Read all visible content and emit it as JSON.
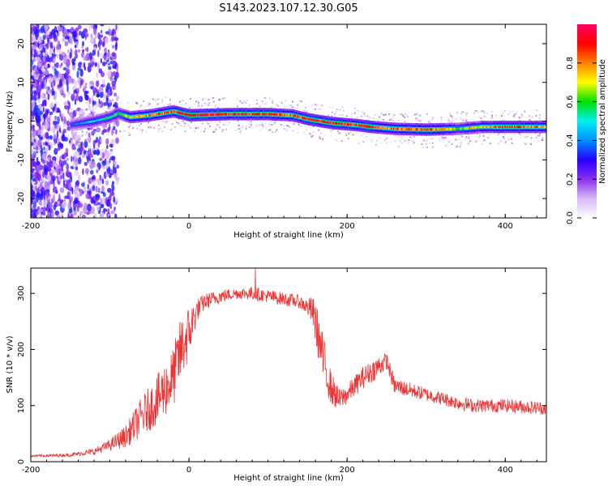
{
  "title": "S143.2023.107.12.30.G05",
  "chart_data": [
    {
      "type": "heatmap",
      "xlabel": "Height of straight line (km)",
      "ylabel": "Frequency (Hz)",
      "xlim": [
        -200,
        452
      ],
      "ylim": [
        -25,
        25
      ],
      "xticks": [
        -200,
        0,
        200,
        400
      ],
      "yticks": [
        -20,
        -10,
        0,
        10,
        20
      ],
      "grid": false,
      "colorbar": {
        "label": "Normalized spectral amplitude",
        "range": [
          0,
          1
        ],
        "ticks": [
          "0.0",
          "0.2",
          "0.4",
          "0.6",
          "0.8"
        ],
        "tick_values": [
          0,
          0.2,
          0.4,
          0.6,
          0.8
        ],
        "colormap": [
          "#ffffff",
          "#d7b8f5",
          "#8c2ff0",
          "#2400ff",
          "#0090ff",
          "#00f0f0",
          "#00e000",
          "#ffff00",
          "#ff8000",
          "#ff0000",
          "#ff0060"
        ]
      },
      "ridge": {
        "x": [
          -150,
          -120,
          -100,
          -90,
          -75,
          -50,
          -20,
          0,
          50,
          100,
          130,
          150,
          180,
          210,
          230,
          260,
          300,
          340,
          370,
          400,
          452
        ],
        "y": [
          -1,
          0,
          1,
          2,
          1,
          1.5,
          2.5,
          1.5,
          1.8,
          1.8,
          1.5,
          0.5,
          -0.5,
          -1,
          -1.5,
          -2,
          -2.2,
          -2,
          -1.5,
          -1.5,
          -1.5
        ],
        "strength": [
          0.35,
          0.5,
          0.6,
          0.6,
          0.7,
          0.8,
          0.9,
          0.95,
          0.9,
          0.9,
          0.85,
          0.95,
          0.9,
          0.9,
          0.9,
          0.8,
          0.9,
          0.65,
          0.75,
          0.9,
          0.8
        ]
      }
    },
    {
      "type": "line",
      "xlabel": "Height of straight line (km)",
      "ylabel": "SNR (10 * v/v)",
      "xlim": [
        -200,
        452
      ],
      "ylim": [
        0,
        345
      ],
      "xticks": [
        -200,
        0,
        200,
        400
      ],
      "yticks": [
        0,
        100,
        200,
        300
      ],
      "grid": false,
      "color": "#f03232",
      "x": [
        -200,
        -150,
        -120,
        -100,
        -80,
        -60,
        -40,
        -20,
        -10,
        0,
        10,
        20,
        40,
        60,
        80,
        100,
        120,
        140,
        150,
        155,
        160,
        170,
        180,
        190,
        200,
        220,
        240,
        250,
        260,
        300,
        340,
        360,
        400,
        452
      ],
      "y": [
        10,
        12,
        18,
        30,
        45,
        80,
        110,
        150,
        200,
        230,
        270,
        285,
        295,
        300,
        300,
        295,
        290,
        285,
        275,
        270,
        250,
        180,
        130,
        110,
        120,
        150,
        170,
        180,
        135,
        120,
        105,
        100,
        100,
        95
      ],
      "noise": [
        2,
        3,
        6,
        10,
        20,
        35,
        45,
        55,
        60,
        50,
        20,
        15,
        12,
        10,
        12,
        12,
        12,
        12,
        15,
        25,
        40,
        45,
        30,
        20,
        18,
        20,
        20,
        15,
        15,
        12,
        12,
        12,
        12,
        12
      ],
      "max_point": {
        "x": 84,
        "y": 345
      }
    }
  ]
}
